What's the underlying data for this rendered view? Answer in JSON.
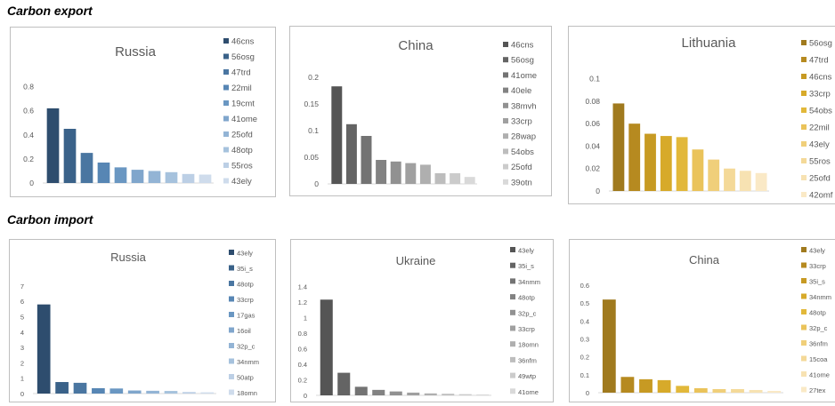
{
  "sections": {
    "export_title": "Carbon export",
    "import_title": "Carbon import"
  },
  "chart_data": [
    {
      "type": "bar",
      "group": "Carbon export",
      "title": "Russia",
      "categories": [
        "46cns",
        "56osg",
        "47trd",
        "22mil",
        "19cmt",
        "41ome",
        "25ofd",
        "48otp",
        "55ros",
        "43ely"
      ],
      "values": [
        0.62,
        0.45,
        0.25,
        0.17,
        0.13,
        0.11,
        0.1,
        0.09,
        0.075,
        0.07
      ],
      "ylim": [
        0,
        0.9
      ],
      "yticks": [
        0,
        0.2,
        0.4,
        0.6,
        0.8
      ],
      "ytick_labels": [
        "0",
        "0.2",
        "0.4",
        "0.6",
        "0.8"
      ],
      "colors": [
        "#2e4d6e",
        "#3a6289",
        "#4a76a1",
        "#5786b4",
        "#6a97c2",
        "#80a6cc",
        "#93b4d5",
        "#a6c2dd",
        "#bccfe5",
        "#cfdcec"
      ]
    },
    {
      "type": "bar",
      "group": "Carbon export",
      "title": "China",
      "categories": [
        "46cns",
        "56osg",
        "41ome",
        "40ele",
        "38mvh",
        "33crp",
        "28wap",
        "54obs",
        "25ofd",
        "39otn"
      ],
      "values": [
        0.183,
        0.112,
        0.09,
        0.045,
        0.042,
        0.039,
        0.036,
        0.02,
        0.02,
        0.013
      ],
      "ylim": [
        0,
        0.22
      ],
      "yticks": [
        0,
        0.05,
        0.1,
        0.15,
        0.2
      ],
      "ytick_labels": [
        "0",
        "0.05",
        "0.1",
        "0.15",
        "0.2"
      ],
      "colors": [
        "#555555",
        "#646464",
        "#737373",
        "#828282",
        "#919191",
        "#a0a0a0",
        "#afafaf",
        "#bdbdbd",
        "#cbcbcb",
        "#d9d9d9"
      ]
    },
    {
      "type": "bar",
      "group": "Carbon export",
      "title": "Lithuania",
      "categories": [
        "56osg",
        "47trd",
        "46cns",
        "33crp",
        "54obs",
        "22mil",
        "43ely",
        "55ros",
        "25ofd",
        "42omf"
      ],
      "values": [
        0.078,
        0.06,
        0.051,
        0.049,
        0.048,
        0.037,
        0.028,
        0.02,
        0.018,
        0.016
      ],
      "ylim": [
        0,
        0.11
      ],
      "yticks": [
        0,
        0.02,
        0.04,
        0.06,
        0.08,
        0.1
      ],
      "ytick_labels": [
        "0",
        "0.02",
        "0.04",
        "0.06",
        "0.08",
        "0.1"
      ],
      "colors": [
        "#a07a1e",
        "#b68a20",
        "#c79a23",
        "#d7aa2a",
        "#e2b83a",
        "#eac35a",
        "#f0cf7a",
        "#f4d998",
        "#f7e2b2",
        "#fae9c6"
      ]
    },
    {
      "type": "bar",
      "group": "Carbon import",
      "title": "Russia",
      "categories": [
        "43ely",
        "35i_s",
        "48otp",
        "33crp",
        "17gas",
        "16oil",
        "32p_c",
        "34nmm",
        "50atp",
        "18omn"
      ],
      "values": [
        5.8,
        0.75,
        0.7,
        0.35,
        0.33,
        0.2,
        0.18,
        0.17,
        0.1,
        0.08
      ],
      "ylim": [
        0,
        7.4
      ],
      "yticks": [
        0,
        1,
        2,
        3,
        4,
        5,
        6,
        7
      ],
      "ytick_labels": [
        "0",
        "1",
        "2",
        "3",
        "4",
        "5",
        "6",
        "7"
      ],
      "colors": [
        "#2e4d6e",
        "#3a6289",
        "#4a76a1",
        "#5786b4",
        "#6a97c2",
        "#80a6cc",
        "#93b4d5",
        "#a6c2dd",
        "#bccfe5",
        "#cfdcec"
      ]
    },
    {
      "type": "bar",
      "group": "Carbon import",
      "title": "Ukraine",
      "categories": [
        "43ely",
        "35i_s",
        "34nmm",
        "48otp",
        "32p_c",
        "33crp",
        "18omn",
        "36nfm",
        "49wtp",
        "41ome"
      ],
      "values": [
        1.23,
        0.29,
        0.11,
        0.07,
        0.05,
        0.035,
        0.025,
        0.02,
        0.015,
        0.012
      ],
      "ylim": [
        0,
        1.45
      ],
      "yticks": [
        0,
        0.2,
        0.4,
        0.6,
        0.8,
        1,
        1.2,
        1.4
      ],
      "ytick_labels": [
        "0",
        "0.2",
        "0.4",
        "0.6",
        "0.8",
        "1",
        "1.2",
        "1.4"
      ],
      "colors": [
        "#555555",
        "#646464",
        "#737373",
        "#828282",
        "#919191",
        "#a0a0a0",
        "#afafaf",
        "#bdbdbd",
        "#cbcbcb",
        "#d9d9d9"
      ]
    },
    {
      "type": "bar",
      "group": "Carbon import",
      "title": "China",
      "categories": [
        "43ely",
        "33crp",
        "35i_s",
        "34nmm",
        "48otp",
        "32p_c",
        "36nfm",
        "15coa",
        "41ome",
        "27tex"
      ],
      "values": [
        0.52,
        0.088,
        0.075,
        0.07,
        0.038,
        0.025,
        0.02,
        0.02,
        0.015,
        0.01
      ],
      "ylim": [
        0,
        0.63
      ],
      "yticks": [
        0,
        0.1,
        0.2,
        0.3,
        0.4,
        0.5,
        0.6
      ],
      "ytick_labels": [
        "0",
        "0.1",
        "0.2",
        "0.3",
        "0.4",
        "0.5",
        "0.6"
      ],
      "colors": [
        "#a07a1e",
        "#b68a20",
        "#c79a23",
        "#d7aa2a",
        "#e2b83a",
        "#eac35a",
        "#f0cf7a",
        "#f4d998",
        "#f7e2b2",
        "#fae9c6"
      ]
    }
  ]
}
